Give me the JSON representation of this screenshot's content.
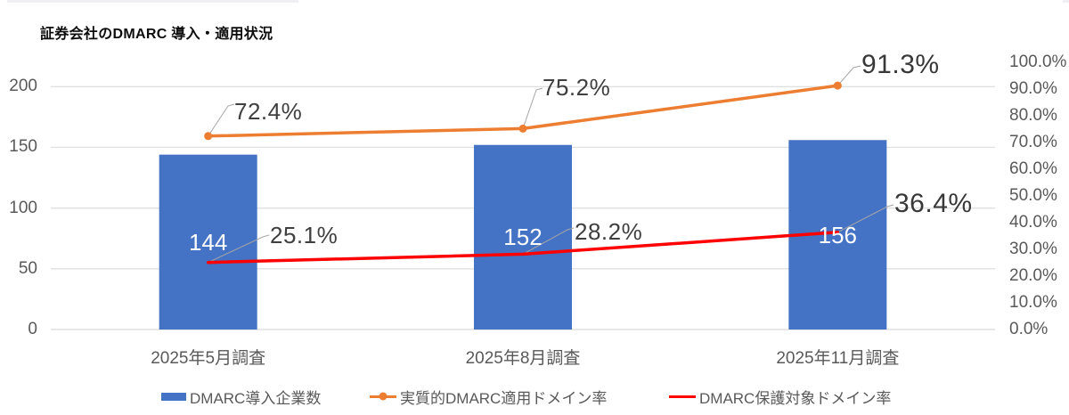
{
  "title": "証券会社のDMARC 導入・適用状況",
  "chart_data": {
    "type": "combo-bar-line",
    "categories": [
      "2025年5月調査",
      "2025年8月調査",
      "2025年11月調査"
    ],
    "series": [
      {
        "name": "DMARC導入企業数",
        "type": "bar",
        "axis": "left",
        "color": "#4472C4",
        "values": [
          144,
          152,
          156
        ],
        "data_labels": [
          "144",
          "152",
          "156"
        ]
      },
      {
        "name": "実質的DMARC適用ドメイン率",
        "type": "line",
        "axis": "right",
        "color": "#ED7D31",
        "marker": true,
        "values": [
          72.4,
          75.2,
          91.3
        ],
        "data_labels": [
          "72.4%",
          "75.2%",
          "91.3%"
        ]
      },
      {
        "name": "DMARC保護対象ドメイン率",
        "type": "line",
        "axis": "right",
        "color": "#FF0000",
        "marker": false,
        "values": [
          25.1,
          28.2,
          36.4
        ],
        "data_labels": [
          "25.1%",
          "28.2%",
          "36.4%"
        ]
      }
    ],
    "left_axis": {
      "tick_labels": [
        "0",
        "50",
        "100",
        "150",
        "200"
      ],
      "tick_values": [
        0,
        50,
        100,
        150,
        200
      ],
      "range": [
        0,
        220
      ]
    },
    "right_axis": {
      "tick_labels": [
        "0.0%",
        "10.0%",
        "20.0%",
        "30.0%",
        "40.0%",
        "50.0%",
        "60.0%",
        "70.0%",
        "80.0%",
        "90.0%",
        "100.0%"
      ],
      "tick_values": [
        0,
        10,
        20,
        30,
        40,
        50,
        60,
        70,
        80,
        90,
        100
      ],
      "range": [
        0,
        100
      ]
    },
    "grid": true,
    "legend_position": "bottom",
    "background": "#FFFFFF",
    "gridline_color": "#E1E1E1",
    "axis_text_color": "#595959",
    "label_text_color": "#3F3F3F",
    "bar_label_color": "#FFFFFF",
    "leader_line_color": "#A6A6A6"
  }
}
